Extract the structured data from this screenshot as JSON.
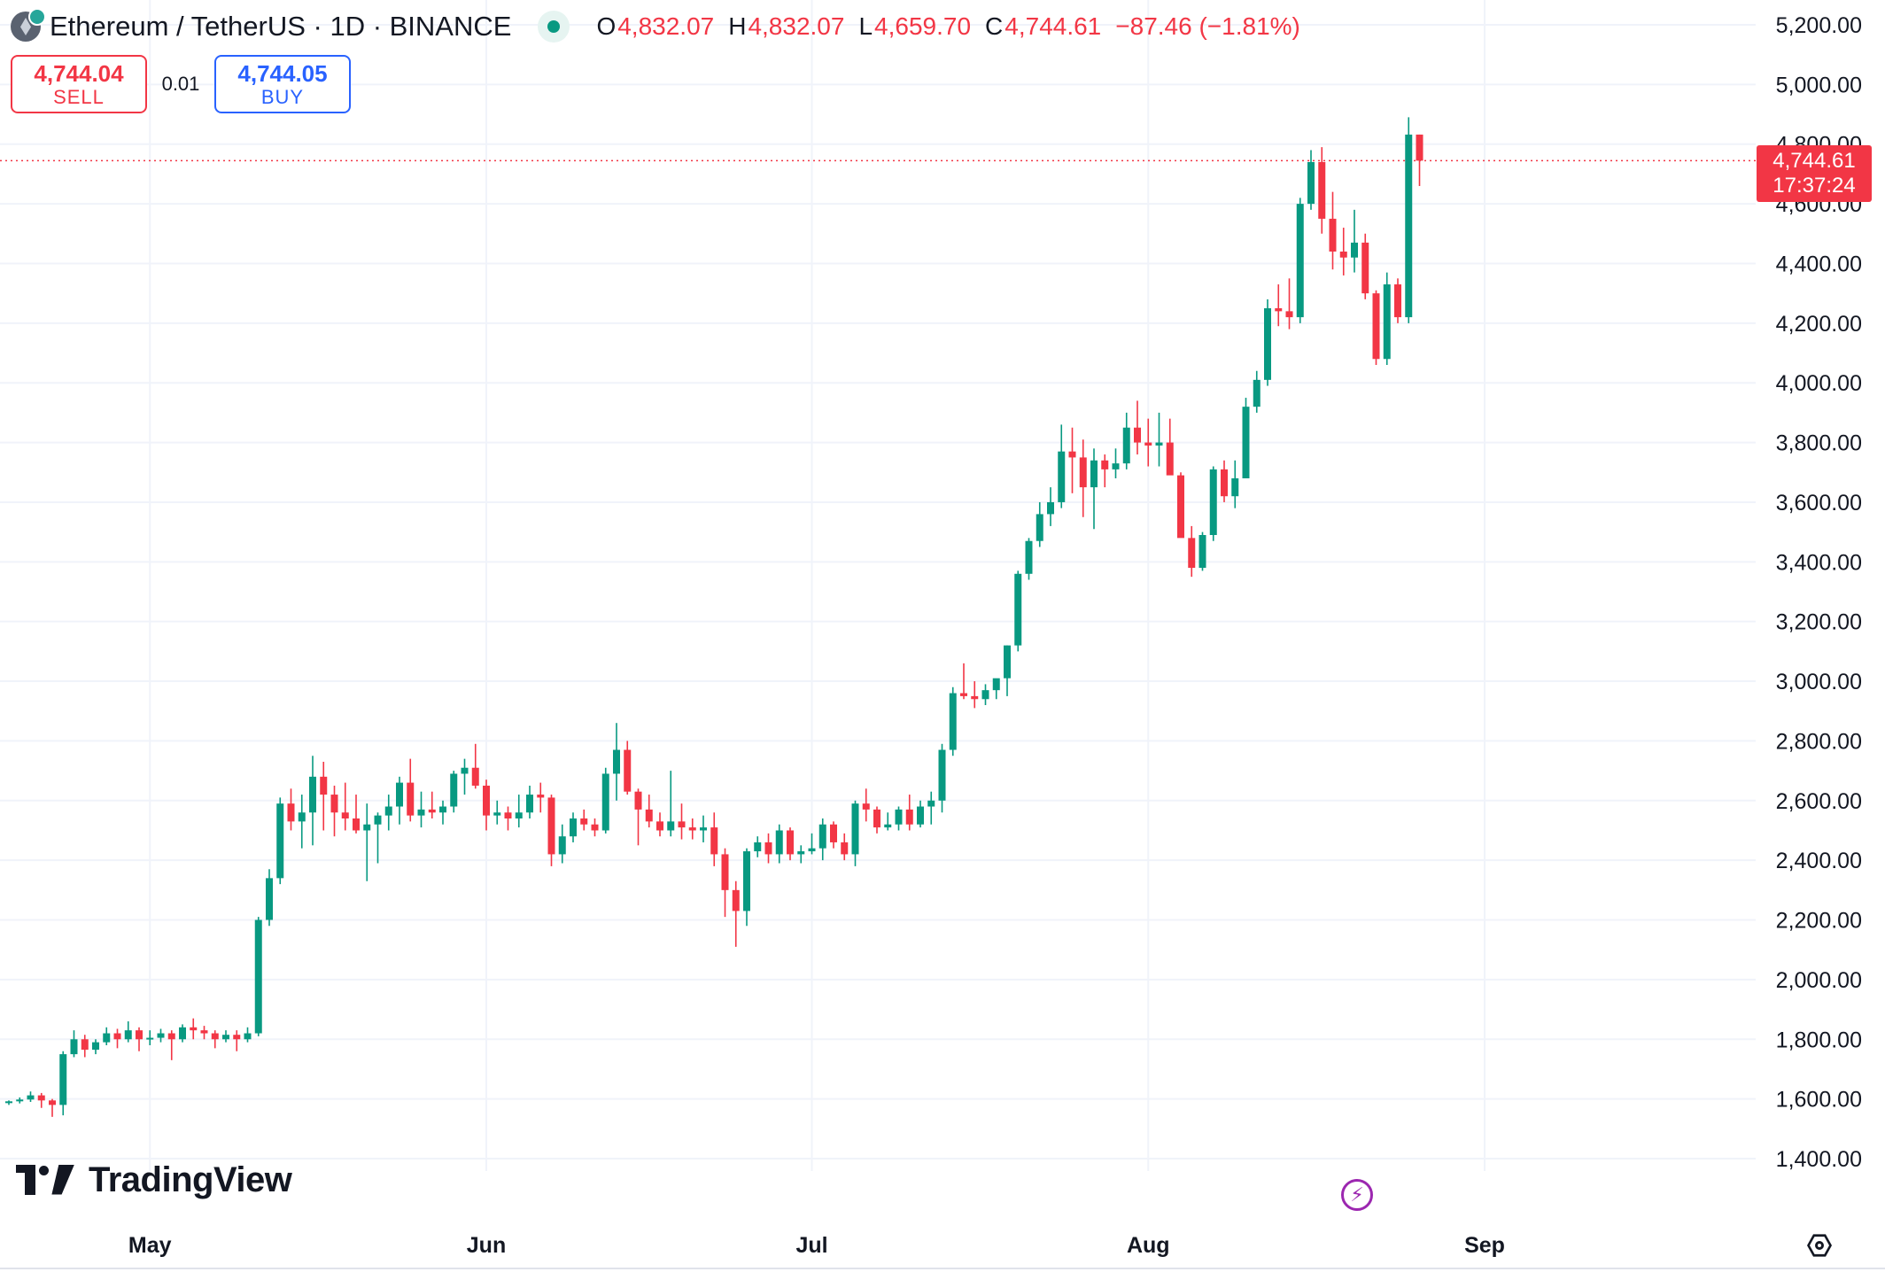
{
  "header": {
    "title": "Ethereum / TetherUS · 1D · BINANCE",
    "ohlc": {
      "o_label": "O",
      "o": "4,832.07",
      "h_label": "H",
      "h": "4,832.07",
      "l_label": "L",
      "l": "4,659.70",
      "c_label": "C",
      "c": "4,744.61",
      "change": "−87.46 (−1.81%)"
    },
    "icons": {
      "symbol": "ethereum-logo-icon",
      "status": "live-status-icon"
    }
  },
  "trade": {
    "sell_price": "4,744.04",
    "sell_label": "SELL",
    "spread": "0.01",
    "buy_price": "4,744.05",
    "buy_label": "BUY"
  },
  "price_tag": {
    "value": "4,744.61",
    "countdown": "17:37:24"
  },
  "branding": {
    "logo_text": "TradingView"
  },
  "colors": {
    "up": "#089981",
    "down": "#f23645",
    "grid": "#f0f3fa",
    "text": "#131722"
  },
  "chart_data": {
    "type": "candlestick",
    "title": "Ethereum / TetherUS · 1D · BINANCE",
    "ylim": [
      1300,
      5300
    ],
    "y_ticks": [
      1400,
      1600,
      1800,
      2000,
      2200,
      2400,
      2600,
      2800,
      3000,
      3200,
      3400,
      3600,
      3800,
      4000,
      4200,
      4400,
      4600,
      4800,
      5000,
      5200
    ],
    "y_tick_labels": [
      "1,400.00",
      "1,600.00",
      "1,800.00",
      "2,000.00",
      "2,200.00",
      "2,400.00",
      "2,600.00",
      "2,800.00",
      "3,000.00",
      "3,200.00",
      "3,400.00",
      "3,600.00",
      "3,800.00",
      "4,000.00",
      "4,200.00",
      "4,400.00",
      "4,600.00",
      "4,800.00",
      "5,000.00",
      "5,200.00"
    ],
    "x_labels": [
      {
        "label": "May",
        "date": "2025-05-01"
      },
      {
        "label": "Jun",
        "date": "2025-06-01"
      },
      {
        "label": "Jul",
        "date": "2025-07-01"
      },
      {
        "label": "Aug",
        "date": "2025-08-01"
      },
      {
        "label": "Sep",
        "date": "2025-09-01"
      }
    ],
    "first_date": "2025-04-18",
    "last_price": 4744.61,
    "candles": [
      [
        1588,
        1595,
        1580,
        1592
      ],
      [
        1592,
        1605,
        1585,
        1598
      ],
      [
        1598,
        1625,
        1590,
        1612
      ],
      [
        1612,
        1620,
        1570,
        1595
      ],
      [
        1595,
        1600,
        1540,
        1580
      ],
      [
        1580,
        1760,
        1545,
        1750
      ],
      [
        1750,
        1830,
        1740,
        1800
      ],
      [
        1800,
        1815,
        1740,
        1765
      ],
      [
        1765,
        1800,
        1750,
        1790
      ],
      [
        1790,
        1840,
        1780,
        1820
      ],
      [
        1820,
        1835,
        1770,
        1800
      ],
      [
        1800,
        1860,
        1790,
        1830
      ],
      [
        1830,
        1840,
        1760,
        1800
      ],
      [
        1800,
        1830,
        1780,
        1805
      ],
      [
        1805,
        1835,
        1790,
        1820
      ],
      [
        1820,
        1830,
        1730,
        1800
      ],
      [
        1800,
        1850,
        1790,
        1840
      ],
      [
        1840,
        1870,
        1800,
        1830
      ],
      [
        1830,
        1845,
        1800,
        1820
      ],
      [
        1820,
        1830,
        1770,
        1800
      ],
      [
        1800,
        1830,
        1790,
        1815
      ],
      [
        1815,
        1830,
        1760,
        1800
      ],
      [
        1800,
        1840,
        1790,
        1820
      ],
      [
        1820,
        2210,
        1810,
        2200
      ],
      [
        2200,
        2370,
        2180,
        2340
      ],
      [
        2340,
        2610,
        2320,
        2590
      ],
      [
        2590,
        2640,
        2500,
        2530
      ],
      [
        2530,
        2620,
        2440,
        2560
      ],
      [
        2560,
        2750,
        2450,
        2680
      ],
      [
        2680,
        2730,
        2500,
        2620
      ],
      [
        2620,
        2650,
        2480,
        2560
      ],
      [
        2560,
        2660,
        2500,
        2540
      ],
      [
        2540,
        2620,
        2490,
        2500
      ],
      [
        2500,
        2590,
        2330,
        2520
      ],
      [
        2520,
        2560,
        2390,
        2550
      ],
      [
        2550,
        2620,
        2500,
        2580
      ],
      [
        2580,
        2680,
        2520,
        2660
      ],
      [
        2660,
        2740,
        2530,
        2550
      ],
      [
        2550,
        2630,
        2510,
        2570
      ],
      [
        2570,
        2630,
        2540,
        2560
      ],
      [
        2560,
        2600,
        2520,
        2580
      ],
      [
        2580,
        2700,
        2560,
        2690
      ],
      [
        2690,
        2740,
        2620,
        2710
      ],
      [
        2710,
        2790,
        2640,
        2650
      ],
      [
        2650,
        2670,
        2500,
        2550
      ],
      [
        2550,
        2600,
        2520,
        2560
      ],
      [
        2560,
        2580,
        2500,
        2540
      ],
      [
        2540,
        2620,
        2510,
        2560
      ],
      [
        2560,
        2650,
        2540,
        2620
      ],
      [
        2620,
        2660,
        2560,
        2610
      ],
      [
        2610,
        2620,
        2380,
        2420
      ],
      [
        2420,
        2520,
        2390,
        2480
      ],
      [
        2480,
        2560,
        2460,
        2540
      ],
      [
        2540,
        2570,
        2500,
        2520
      ],
      [
        2520,
        2540,
        2480,
        2500
      ],
      [
        2500,
        2710,
        2490,
        2690
      ],
      [
        2690,
        2860,
        2600,
        2770
      ],
      [
        2770,
        2800,
        2620,
        2630
      ],
      [
        2630,
        2640,
        2450,
        2570
      ],
      [
        2570,
        2620,
        2510,
        2530
      ],
      [
        2530,
        2560,
        2480,
        2500
      ],
      [
        2500,
        2700,
        2480,
        2530
      ],
      [
        2530,
        2590,
        2470,
        2510
      ],
      [
        2510,
        2540,
        2470,
        2500
      ],
      [
        2500,
        2550,
        2460,
        2510
      ],
      [
        2510,
        2560,
        2380,
        2420
      ],
      [
        2420,
        2440,
        2210,
        2300
      ],
      [
        2300,
        2330,
        2110,
        2230
      ],
      [
        2230,
        2440,
        2180,
        2430
      ],
      [
        2430,
        2480,
        2410,
        2460
      ],
      [
        2460,
        2490,
        2390,
        2420
      ],
      [
        2420,
        2520,
        2390,
        2500
      ],
      [
        2500,
        2510,
        2400,
        2420
      ],
      [
        2420,
        2450,
        2390,
        2430
      ],
      [
        2430,
        2490,
        2420,
        2440
      ],
      [
        2440,
        2540,
        2400,
        2520
      ],
      [
        2520,
        2530,
        2440,
        2460
      ],
      [
        2460,
        2490,
        2400,
        2420
      ],
      [
        2420,
        2600,
        2380,
        2590
      ],
      [
        2590,
        2640,
        2530,
        2570
      ],
      [
        2570,
        2580,
        2490,
        2510
      ],
      [
        2510,
        2560,
        2500,
        2520
      ],
      [
        2520,
        2580,
        2500,
        2570
      ],
      [
        2570,
        2620,
        2500,
        2520
      ],
      [
        2520,
        2600,
        2510,
        2580
      ],
      [
        2580,
        2630,
        2520,
        2600
      ],
      [
        2600,
        2790,
        2560,
        2770
      ],
      [
        2770,
        2980,
        2750,
        2960
      ],
      [
        2960,
        3060,
        2940,
        2950
      ],
      [
        2950,
        3000,
        2910,
        2940
      ],
      [
        2940,
        2990,
        2920,
        2970
      ],
      [
        2970,
        3000,
        2940,
        3010
      ],
      [
        3010,
        3120,
        2950,
        3120
      ],
      [
        3120,
        3370,
        3100,
        3360
      ],
      [
        3360,
        3480,
        3340,
        3470
      ],
      [
        3470,
        3600,
        3450,
        3560
      ],
      [
        3560,
        3650,
        3520,
        3600
      ],
      [
        3600,
        3860,
        3580,
        3770
      ],
      [
        3770,
        3850,
        3630,
        3750
      ],
      [
        3750,
        3810,
        3550,
        3650
      ],
      [
        3650,
        3780,
        3510,
        3740
      ],
      [
        3740,
        3760,
        3650,
        3710
      ],
      [
        3710,
        3780,
        3680,
        3730
      ],
      [
        3730,
        3900,
        3710,
        3850
      ],
      [
        3850,
        3940,
        3760,
        3800
      ],
      [
        3800,
        3880,
        3720,
        3790
      ],
      [
        3790,
        3900,
        3720,
        3800
      ],
      [
        3800,
        3880,
        3700,
        3690
      ],
      [
        3690,
        3700,
        3490,
        3480
      ],
      [
        3480,
        3520,
        3350,
        3380
      ],
      [
        3380,
        3500,
        3370,
        3490
      ],
      [
        3490,
        3720,
        3470,
        3710
      ],
      [
        3710,
        3740,
        3600,
        3620
      ],
      [
        3620,
        3740,
        3580,
        3680
      ],
      [
        3680,
        3950,
        3680,
        3920
      ],
      [
        3920,
        4040,
        3900,
        4010
      ],
      [
        4010,
        4280,
        3990,
        4250
      ],
      [
        4250,
        4330,
        4190,
        4240
      ],
      [
        4240,
        4350,
        4180,
        4220
      ],
      [
        4220,
        4620,
        4200,
        4600
      ],
      [
        4600,
        4780,
        4580,
        4740
      ],
      [
        4740,
        4790,
        4500,
        4550
      ],
      [
        4550,
        4640,
        4380,
        4440
      ],
      [
        4440,
        4520,
        4360,
        4420
      ],
      [
        4420,
        4580,
        4370,
        4470
      ],
      [
        4470,
        4500,
        4280,
        4300
      ],
      [
        4300,
        4310,
        4060,
        4080
      ],
      [
        4080,
        4370,
        4060,
        4330
      ],
      [
        4330,
        4350,
        4200,
        4220
      ],
      [
        4220,
        4890,
        4200,
        4832.07
      ],
      [
        4832.07,
        4832.07,
        4659.7,
        4744.61
      ]
    ]
  }
}
